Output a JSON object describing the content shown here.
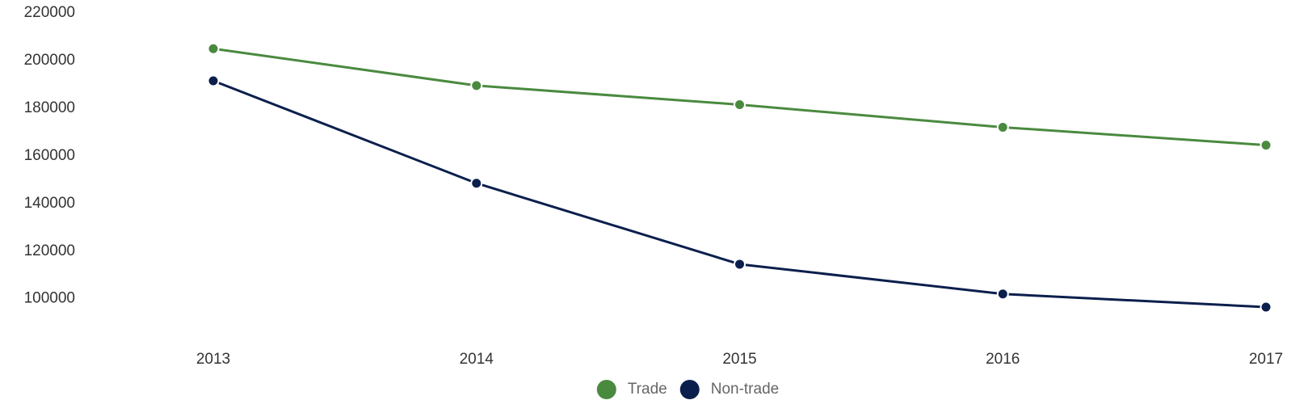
{
  "chart_data": {
    "type": "line",
    "categories": [
      "2013",
      "2014",
      "2015",
      "2016",
      "2017"
    ],
    "series": [
      {
        "name": "Trade",
        "color": "#4a8a3f",
        "values": [
          205000,
          189500,
          181500,
          172000,
          164500
        ]
      },
      {
        "name": "Non-trade",
        "color": "#0b1f4d",
        "values": [
          191500,
          148500,
          114500,
          102000,
          96500
        ]
      }
    ],
    "y_ticks": [
      "220000",
      "200000",
      "180000",
      "160000",
      "140000",
      "120000",
      "100000"
    ],
    "ylim": [
      96500,
      220000
    ],
    "grid": false,
    "legend_position": "bottom-center",
    "title": "",
    "xlabel": "",
    "ylabel": ""
  }
}
